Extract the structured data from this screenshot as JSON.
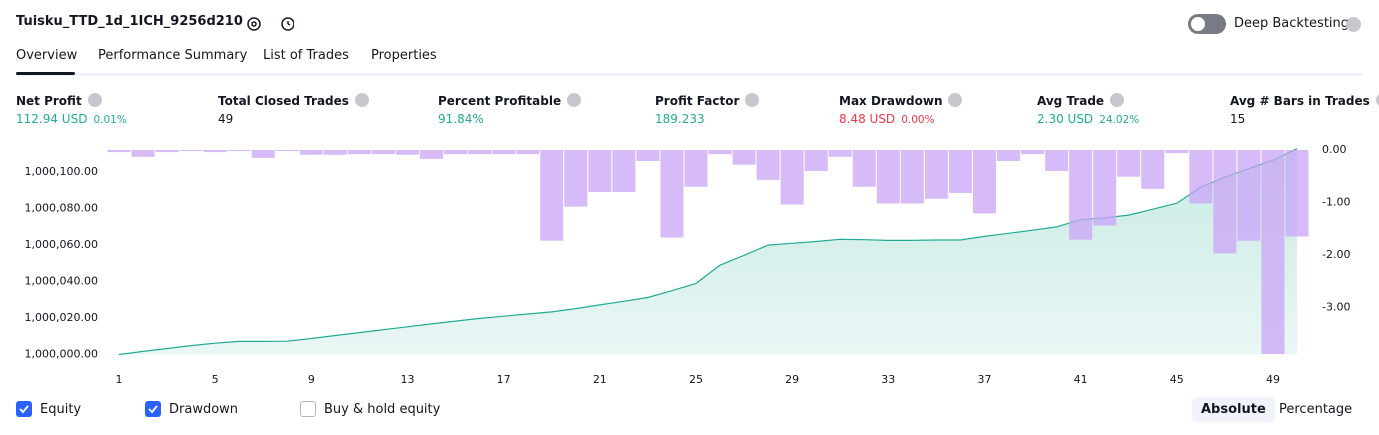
{
  "header": {
    "title": "Tuisku_TTD_1d_1ICH_9256d210",
    "deep_backtesting": "Deep Backtesting"
  },
  "tabs": [
    "Overview",
    "Performance Summary",
    "List of Trades",
    "Properties"
  ],
  "active_tab": 0,
  "metrics": [
    {
      "label": "Net Profit",
      "value": "112.94 USD",
      "percent": "0.01%",
      "color": "#22ab94"
    },
    {
      "label": "Total Closed Trades",
      "value": "49",
      "color": "#131722"
    },
    {
      "label": "Percent Profitable",
      "value": "91.84%",
      "color": "#22ab94"
    },
    {
      "label": "Profit Factor",
      "value": "189.233",
      "color": "#22ab94"
    },
    {
      "label": "Max Drawdown",
      "value": "8.48 USD",
      "percent": "0.00%",
      "color": "#f23645"
    },
    {
      "label": "Avg Trade",
      "value": "2.30 USD",
      "percent": "24.02%",
      "color": "#22ab94"
    },
    {
      "label": "Avg # Bars in Trades",
      "value": "15",
      "color": "#131722"
    }
  ],
  "chart_data": {
    "type": "line",
    "x": [
      1,
      2,
      3,
      4,
      5,
      6,
      7,
      8,
      9,
      10,
      11,
      12,
      13,
      14,
      15,
      16,
      17,
      18,
      19,
      20,
      21,
      22,
      23,
      24,
      25,
      26,
      27,
      28,
      29,
      30,
      31,
      32,
      33,
      34,
      35,
      36,
      37,
      38,
      39,
      40,
      41,
      42,
      43,
      44,
      45,
      46,
      47,
      48,
      49,
      50
    ],
    "xlim": [
      1,
      50
    ],
    "xticks": [
      1,
      5,
      9,
      13,
      17,
      21,
      25,
      29,
      33,
      37,
      41,
      45,
      49
    ],
    "ylim": [
      1000000,
      1000112.2
    ],
    "yticks": [
      {
        "value": 1000000,
        "label": "1,000,000.00"
      },
      {
        "value": 1000020,
        "label": "1,000,020.00"
      },
      {
        "value": 1000040,
        "label": "1,000,040.00"
      },
      {
        "value": 1000060,
        "label": "1,000,060.00"
      },
      {
        "value": 1000080,
        "label": "1,000,080.00"
      },
      {
        "value": 1000100,
        "label": "1,000,100.00"
      }
    ],
    "y2lim": [
      -3.9,
      0
    ],
    "y2ticks": [
      {
        "value": 0,
        "label": "0.00"
      },
      {
        "value": -1,
        "label": "-1.00"
      },
      {
        "value": -2,
        "label": "-2.00"
      },
      {
        "value": -3,
        "label": "-3.00"
      }
    ],
    "series": [
      {
        "name": "Equity",
        "type": "line",
        "color": "#22ab94",
        "checked": true,
        "values": [
          1000000,
          1000001.7,
          1000003.3,
          1000004.9,
          1000006.2,
          1000007.2,
          1000007.2,
          1000007.3,
          1000008.8,
          1000010.4,
          1000012,
          1000013.6,
          1000015.2,
          1000016.8,
          1000018.3,
          1000019.8,
          1000021,
          1000022.2,
          1000023.4,
          1000025.2,
          1000027.2,
          1000029.2,
          1000031.3,
          1000035,
          1000039,
          1000049,
          1000054.4,
          1000060,
          1000061,
          1000062,
          1000063.2,
          1000063,
          1000062.6,
          1000062.6,
          1000062.8,
          1000062.8,
          1000064.8,
          1000066.5,
          1000068.2,
          1000070,
          1000074,
          1000075,
          1000076.5,
          1000079.7,
          1000083,
          1000091.8,
          1000097.3,
          1000102,
          1000106.6,
          1000112.94
        ]
      },
      {
        "name": "Drawdown",
        "type": "bar",
        "axis": "y2",
        "color": "#c9a4f7",
        "checked": true,
        "values": [
          -0.04,
          -0.13,
          -0.04,
          -0.02,
          -0.04,
          -0.02,
          -0.15,
          0,
          -0.09,
          -0.09,
          -0.08,
          -0.08,
          -0.09,
          -0.17,
          -0.08,
          -0.08,
          -0.08,
          -0.08,
          -1.73,
          -1.08,
          -0.8,
          -0.8,
          -0.21,
          -1.67,
          -0.7,
          -0.08,
          -0.28,
          -0.57,
          -1.04,
          -0.4,
          -0.13,
          -0.7,
          -1.02,
          -1.02,
          -0.93,
          -0.82,
          -1.21,
          -0.21,
          -0.08,
          -0.4,
          -1.71,
          -1.44,
          -0.51,
          -0.74,
          -0.06,
          -1.02,
          -1.97,
          -1.73,
          -3.89,
          -1.65
        ]
      }
    ],
    "inactive_series": [
      {
        "name": "Buy & hold equity",
        "checked": false
      }
    ]
  },
  "scale_modes": [
    "Absolute",
    "Percentage"
  ],
  "active_scale_mode": 0
}
